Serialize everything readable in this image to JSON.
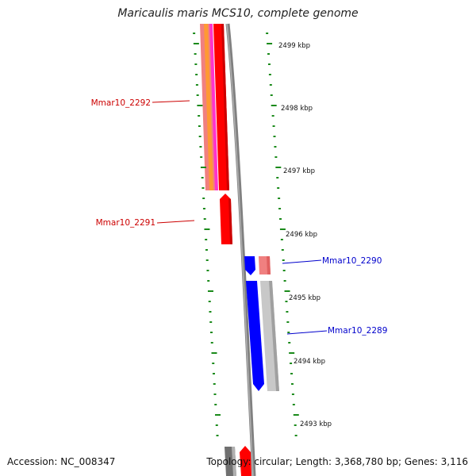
{
  "title": "Maricaulis maris MCS10, complete genome",
  "footer": {
    "accession": "Accession: NC_008347",
    "summary": "Topology: circular; Length: 3,368,780 bp; Genes: 3,116"
  },
  "colors": {
    "forward_gene": "#ff0000",
    "reverse_gene": "#0000ff",
    "forward_label": "#cc0000",
    "reverse_label": "#0000cc",
    "tick": "#1a8a1a",
    "backbone": "#808080"
  },
  "ticks": [
    "2499 kbp",
    "2498 kbp",
    "2497 kbp",
    "2496 kbp",
    "2495 kbp",
    "2494 kbp",
    "2493 kbp"
  ],
  "genes": [
    {
      "label": "Mmar10_2292",
      "strand": "forward"
    },
    {
      "label": "Mmar10_2291",
      "strand": "forward"
    },
    {
      "label": "Mmar10_2290",
      "strand": "reverse"
    },
    {
      "label": "Mmar10_2289",
      "strand": "reverse"
    }
  ]
}
